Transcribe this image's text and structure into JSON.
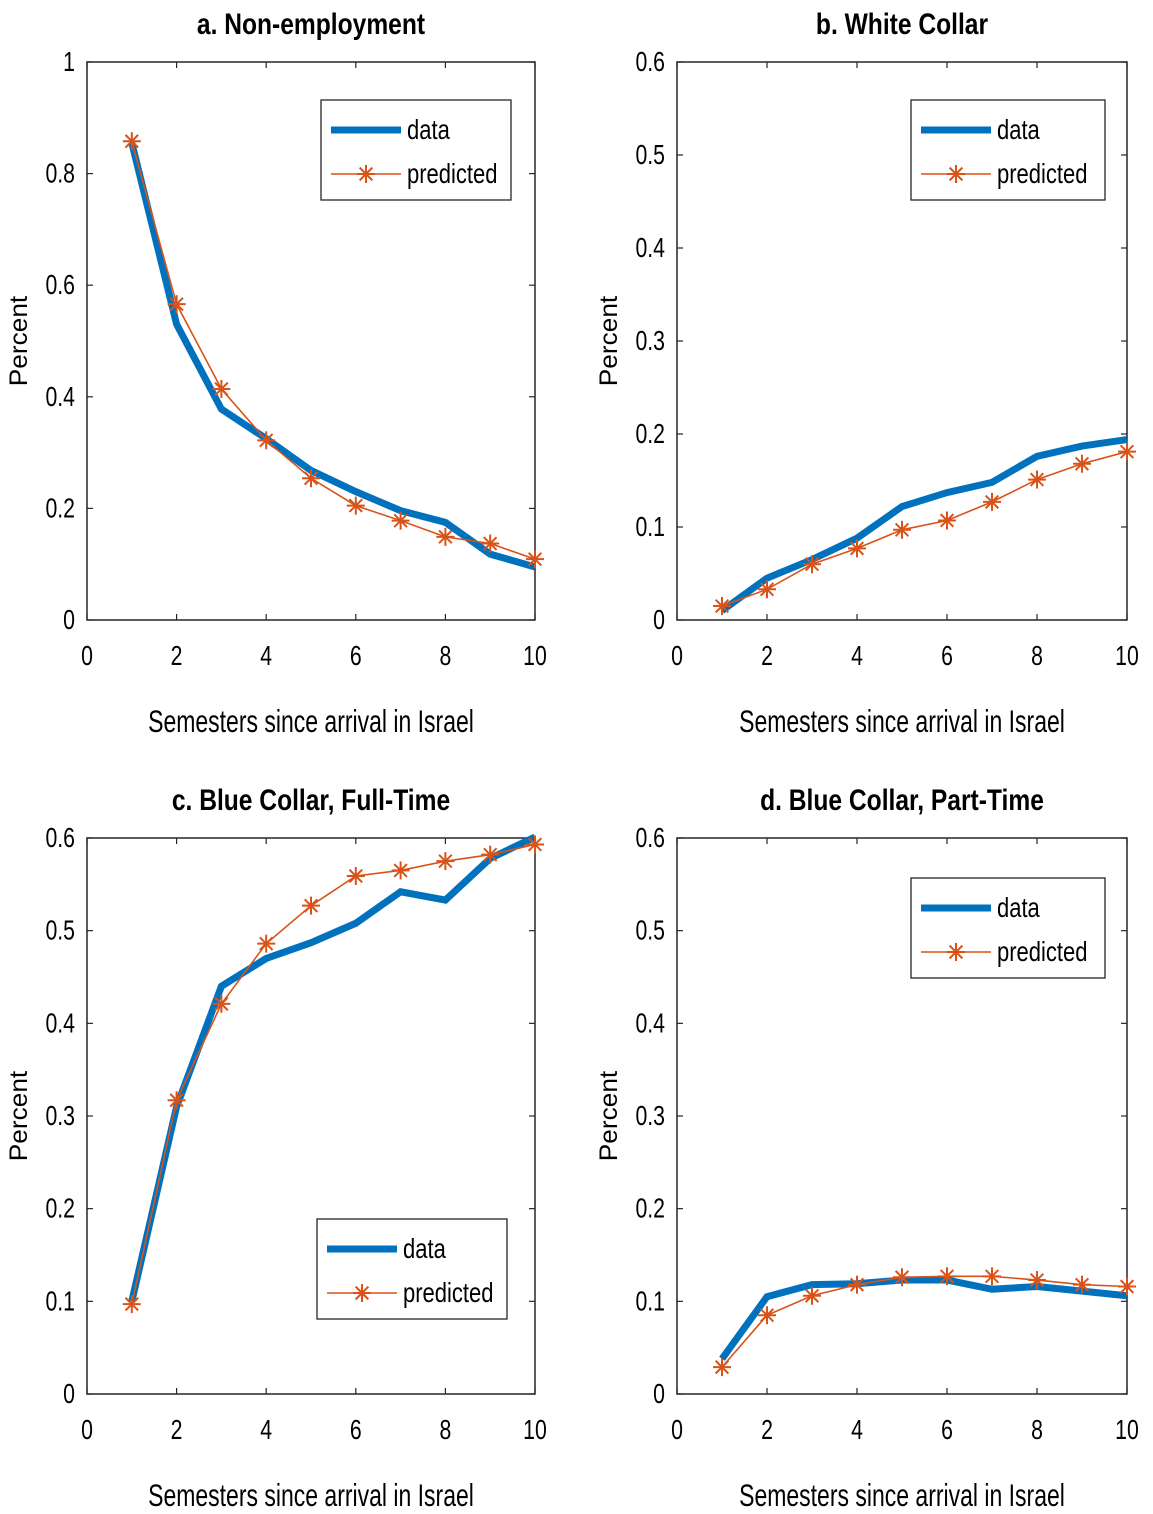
{
  "chart_data": [
    {
      "type": "line",
      "title": "a. Non-employment",
      "xlabel": "Semesters since arrival in Israel",
      "ylabel": "Percent",
      "xlim": [
        0,
        10
      ],
      "ylim": [
        0,
        1
      ],
      "xticks": [
        0,
        2,
        4,
        6,
        8,
        10
      ],
      "yticks": [
        0,
        0.2,
        0.4,
        0.6,
        0.8,
        1
      ],
      "ytick_labels": [
        "0",
        "0.2",
        "0.4",
        "0.6",
        "0.8",
        "1"
      ],
      "legend_position": "top-right",
      "grid": false,
      "x": [
        1,
        2,
        3,
        4,
        5,
        6,
        7,
        8,
        9,
        10
      ],
      "series": [
        {
          "name": "data",
          "values": [
            0.855,
            0.53,
            0.378,
            0.325,
            0.268,
            0.23,
            0.196,
            0.175,
            0.118,
            0.095
          ]
        },
        {
          "name": "predicted",
          "values": [
            0.858,
            0.566,
            0.414,
            0.322,
            0.254,
            0.205,
            0.178,
            0.149,
            0.137,
            0.109
          ]
        }
      ]
    },
    {
      "type": "line",
      "title": "b. White Collar",
      "xlabel": "Semesters since arrival in Israel",
      "ylabel": "Percent",
      "xlim": [
        0,
        10
      ],
      "ylim": [
        0,
        0.6
      ],
      "xticks": [
        0,
        2,
        4,
        6,
        8,
        10
      ],
      "yticks": [
        0,
        0.1,
        0.2,
        0.3,
        0.4,
        0.5,
        0.6
      ],
      "ytick_labels": [
        "0",
        "0.1",
        "0.2",
        "0.3",
        "0.4",
        "0.5",
        "0.6"
      ],
      "legend_position": "top-right",
      "grid": false,
      "x": [
        1,
        2,
        3,
        4,
        5,
        6,
        7,
        8,
        9,
        10
      ],
      "series": [
        {
          "name": "data",
          "values": [
            0.01,
            0.045,
            0.065,
            0.088,
            0.122,
            0.137,
            0.148,
            0.176,
            0.187,
            0.194
          ]
        },
        {
          "name": "predicted",
          "values": [
            0.015,
            0.033,
            0.06,
            0.077,
            0.097,
            0.107,
            0.127,
            0.151,
            0.168,
            0.181
          ]
        }
      ]
    },
    {
      "type": "line",
      "title": "c. Blue Collar, Full-Time",
      "xlabel": "Semesters since arrival in Israel",
      "ylabel": "Percent",
      "xlim": [
        0,
        10
      ],
      "ylim": [
        0,
        0.6
      ],
      "xticks": [
        0,
        2,
        4,
        6,
        8,
        10
      ],
      "yticks": [
        0,
        0.1,
        0.2,
        0.3,
        0.4,
        0.5,
        0.6
      ],
      "ytick_labels": [
        "0",
        "0.1",
        "0.2",
        "0.3",
        "0.4",
        "0.5",
        "0.6"
      ],
      "legend_position": "bottom-right",
      "grid": false,
      "x": [
        1,
        2,
        3,
        4,
        5,
        6,
        7,
        8,
        9,
        10
      ],
      "series": [
        {
          "name": "data",
          "values": [
            0.1,
            0.31,
            0.44,
            0.47,
            0.487,
            0.508,
            0.542,
            0.533,
            0.578,
            0.601
          ]
        },
        {
          "name": "predicted",
          "values": [
            0.097,
            0.317,
            0.421,
            0.486,
            0.527,
            0.559,
            0.565,
            0.575,
            0.582,
            0.593
          ]
        }
      ]
    },
    {
      "type": "line",
      "title": "d. Blue Collar, Part-Time",
      "xlabel": "Semesters since arrival in Israel",
      "ylabel": "Percent",
      "xlim": [
        0,
        10
      ],
      "ylim": [
        0,
        0.6
      ],
      "xticks": [
        0,
        2,
        4,
        6,
        8,
        10
      ],
      "yticks": [
        0,
        0.1,
        0.2,
        0.3,
        0.4,
        0.5,
        0.6
      ],
      "ytick_labels": [
        "0",
        "0.1",
        "0.2",
        "0.3",
        "0.4",
        "0.5",
        "0.6"
      ],
      "legend_position": "top-right",
      "grid": false,
      "x": [
        1,
        2,
        3,
        4,
        5,
        6,
        7,
        8,
        9,
        10
      ],
      "series": [
        {
          "name": "data",
          "values": [
            0.038,
            0.105,
            0.118,
            0.119,
            0.123,
            0.123,
            0.113,
            0.116,
            0.111,
            0.106
          ]
        },
        {
          "name": "predicted",
          "values": [
            0.029,
            0.085,
            0.106,
            0.118,
            0.126,
            0.127,
            0.127,
            0.123,
            0.118,
            0.116
          ]
        }
      ]
    }
  ],
  "colors": {
    "data": "#0072BD",
    "predicted": "#D95319"
  }
}
